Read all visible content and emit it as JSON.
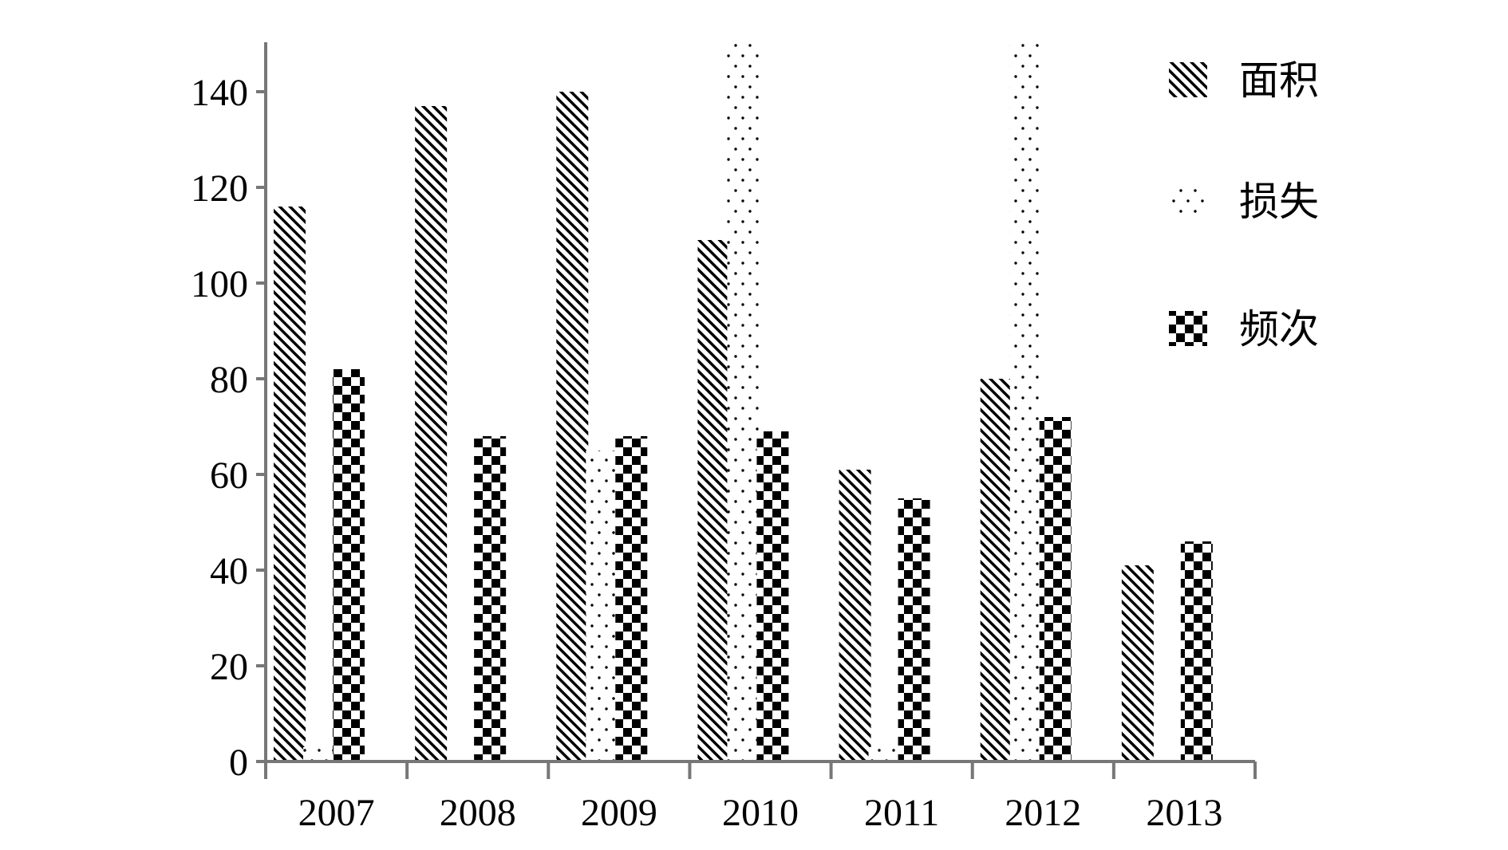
{
  "chart_data": {
    "type": "bar",
    "categories": [
      "2007",
      "2008",
      "2009",
      "2010",
      "2011",
      "2012",
      "2013"
    ],
    "series": [
      {
        "name": "面积",
        "pattern": "diagonal-hatch",
        "values": [
          116,
          137,
          140,
          109,
          61,
          80,
          41
        ]
      },
      {
        "name": "损失",
        "pattern": "dots",
        "values": [
          3,
          0,
          65,
          150,
          3,
          150,
          0
        ]
      },
      {
        "name": "频次",
        "pattern": "checker",
        "values": [
          82,
          68,
          68,
          69,
          55,
          72,
          46
        ]
      }
    ],
    "ylim": [
      0,
      150
    ],
    "yticks": [
      0,
      20,
      40,
      60,
      80,
      100,
      120,
      140
    ],
    "legend_position": "top-right",
    "grid": false,
    "colors": {
      "ink": "#000000",
      "background": "#ffffff",
      "axis": "#777777"
    }
  }
}
